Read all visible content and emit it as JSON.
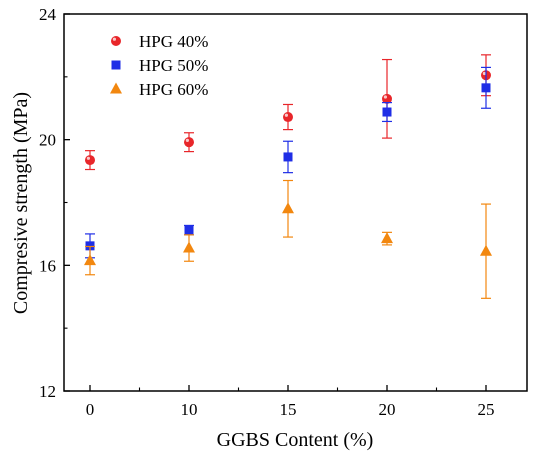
{
  "chart_data": {
    "type": "scatter",
    "xlabel": "GGBS Content (%)",
    "ylabel": "Compresive strength (MPa)",
    "x_categories": [
      "0",
      "10",
      "15",
      "20",
      "25"
    ],
    "ylim": [
      12,
      24
    ],
    "yticks": [
      12,
      16,
      20,
      24
    ],
    "legend_position": "top-left",
    "grid": false,
    "series": [
      {
        "name": "HPG 40%",
        "marker": "circle",
        "color": "#e8262a",
        "values": [
          19.35,
          19.92,
          20.72,
          21.3,
          22.05
        ],
        "errors": [
          0.3,
          0.3,
          0.4,
          1.25,
          0.65
        ]
      },
      {
        "name": "HPG 50%",
        "marker": "square",
        "color": "#1f2ee6",
        "values": [
          16.62,
          17.12,
          19.45,
          20.88,
          21.65
        ],
        "errors": [
          0.38,
          0.15,
          0.5,
          0.3,
          0.65
        ]
      },
      {
        "name": "HPG 60%",
        "marker": "triangle",
        "color": "#f2870f",
        "values": [
          16.15,
          16.55,
          17.8,
          16.85,
          16.45
        ],
        "errors": [
          0.45,
          0.42,
          0.9,
          0.2,
          1.5
        ]
      }
    ]
  }
}
